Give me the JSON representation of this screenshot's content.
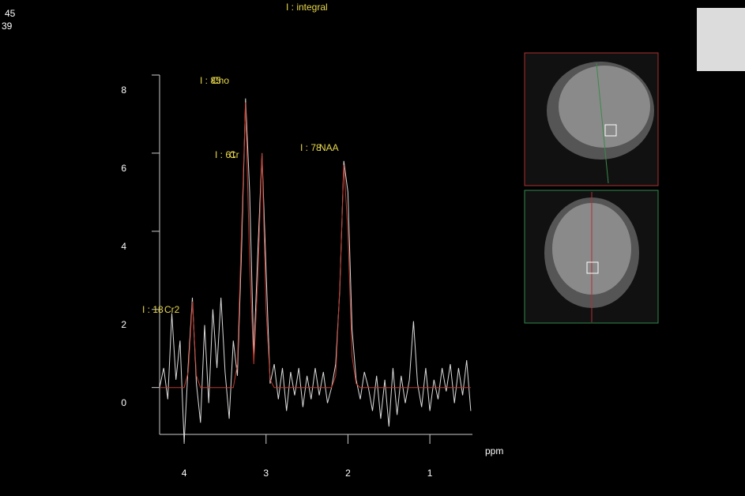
{
  "overlay_text": [
    "45",
    "39"
  ],
  "chart_data": {
    "type": "line",
    "title": "I : integral",
    "xlabel": "ppm",
    "x": [
      4.3,
      4.25,
      4.2,
      4.15,
      4.1,
      4.05,
      4.0,
      3.95,
      3.9,
      3.85,
      3.8,
      3.75,
      3.7,
      3.65,
      3.6,
      3.55,
      3.5,
      3.45,
      3.4,
      3.35,
      3.3,
      3.25,
      3.2,
      3.15,
      3.1,
      3.05,
      3.0,
      2.95,
      2.9,
      2.85,
      2.8,
      2.75,
      2.7,
      2.65,
      2.6,
      2.55,
      2.5,
      2.45,
      2.4,
      2.35,
      2.3,
      2.25,
      2.2,
      2.15,
      2.1,
      2.05,
      2.0,
      1.95,
      1.9,
      1.85,
      1.8,
      1.75,
      1.7,
      1.65,
      1.6,
      1.55,
      1.5,
      1.45,
      1.4,
      1.35,
      1.3,
      1.25,
      1.2,
      1.15,
      1.1,
      1.05,
      1.0,
      0.95,
      0.9,
      0.85,
      0.8,
      0.75,
      0.7,
      0.65,
      0.6,
      0.55,
      0.5
    ],
    "series": [
      {
        "color": "#dcdcdc",
        "values": [
          0.0,
          0.5,
          -0.3,
          1.9,
          0.2,
          1.2,
          -1.4,
          0.6,
          2.3,
          0.1,
          -0.9,
          1.6,
          -0.4,
          2.0,
          0.5,
          2.3,
          0.4,
          -0.8,
          1.2,
          0.3,
          3.5,
          7.4,
          5.0,
          0.8,
          3.5,
          6.0,
          3.0,
          0.1,
          0.6,
          -0.3,
          0.5,
          -0.6,
          0.4,
          -0.2,
          0.5,
          -0.5,
          0.3,
          -0.3,
          0.5,
          -0.2,
          0.4,
          -0.4,
          0.0,
          0.6,
          2.5,
          5.8,
          5.0,
          1.5,
          0.2,
          -0.3,
          0.4,
          0.0,
          -0.6,
          0.3,
          -0.8,
          0.2,
          -1.0,
          0.5,
          -0.7,
          0.3,
          -0.4,
          0.2,
          1.7,
          0.1,
          -0.5,
          0.5,
          -0.6,
          0.2,
          -0.3,
          0.5,
          -0.1,
          0.6,
          -0.4,
          0.5,
          -0.2,
          0.7,
          -0.6
        ]
      },
      {
        "color": "#c0392b",
        "values": [
          0,
          0,
          0,
          0,
          0,
          0,
          0,
          0.4,
          2.2,
          0.3,
          0,
          0,
          0,
          0,
          0,
          0,
          0,
          0,
          0,
          0.6,
          4.0,
          7.3,
          3.2,
          0.6,
          2.8,
          6.0,
          2.0,
          0.2,
          0,
          0,
          0,
          0,
          0,
          0,
          0,
          0,
          0,
          0,
          0,
          0,
          0,
          0,
          0,
          0.3,
          2.6,
          5.7,
          4.0,
          0.8,
          0.1,
          0,
          0,
          0,
          0,
          0,
          0,
          0,
          0,
          0,
          0,
          0,
          0,
          0,
          0,
          0,
          0,
          0,
          0,
          0,
          0,
          0,
          0,
          0,
          0,
          0,
          0,
          0,
          0
        ]
      }
    ],
    "peaks": [
      {
        "integral": "I : 85",
        "name": "Cho"
      },
      {
        "integral": "I : 61",
        "name": "Cr"
      },
      {
        "integral": "I : 78",
        "name": "NAA"
      },
      {
        "integral": "I : 18",
        "name": "Cr2"
      }
    ],
    "xlim": [
      4.3,
      0.48
    ],
    "ylim": [
      -1.2,
      8
    ],
    "xticks": [
      4,
      3,
      2,
      1
    ],
    "yticks": [
      0,
      2,
      4,
      6,
      8
    ]
  }
}
